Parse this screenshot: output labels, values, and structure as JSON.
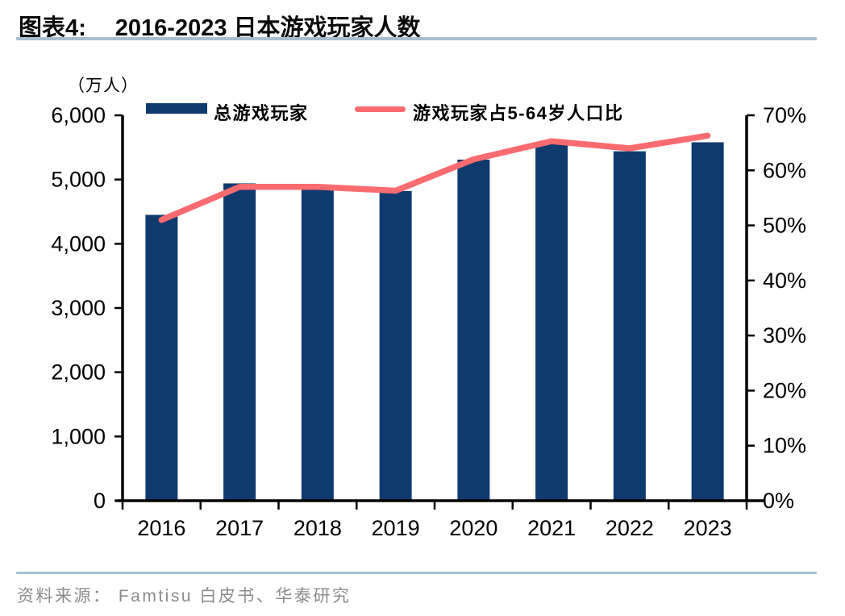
{
  "header": {
    "figure_label": "图表4:",
    "title": "2016-2023 日本游戏玩家人数"
  },
  "axis_unit": "（万人）",
  "legend": {
    "items": [
      {
        "label": "总游戏玩家",
        "type": "bar"
      },
      {
        "label": "游戏玩家占5-64岁人口比",
        "type": "line"
      }
    ]
  },
  "footer": {
    "source": "资料来源： Famtisu 白皮书、华泰研究"
  },
  "colors": {
    "bar": "#0f3a6e",
    "line": "#f96b6f",
    "axis": "#000000",
    "rule": "#a6bed2",
    "footer_text": "#8c8c8c",
    "tick_text": "#000000"
  },
  "chart_data": {
    "type": "bar",
    "subtype": "bar+line-dual-axis",
    "title": "2016-2023 日本游戏玩家人数",
    "categories": [
      "2016",
      "2017",
      "2018",
      "2019",
      "2020",
      "2021",
      "2022",
      "2023"
    ],
    "series": [
      {
        "name": "总游戏玩家",
        "type": "bar",
        "axis": "left",
        "unit": "万人",
        "values": [
          4450,
          4940,
          4920,
          4820,
          5310,
          5560,
          5440,
          5580
        ]
      },
      {
        "name": "游戏玩家占5-64岁人口比",
        "type": "line",
        "axis": "right",
        "unit": "%",
        "values": [
          51.0,
          57.0,
          57.0,
          56.3,
          62.0,
          65.3,
          64.0,
          66.3
        ]
      }
    ],
    "left_axis": {
      "label": "（万人）",
      "min": 0,
      "max": 6000,
      "step": 1000,
      "tick_labels": [
        "0",
        "1,000",
        "2,000",
        "3,000",
        "4,000",
        "5,000",
        "6,000"
      ]
    },
    "right_axis": {
      "min": 0,
      "max": 70,
      "step": 10,
      "tick_labels": [
        "0%",
        "10%",
        "20%",
        "30%",
        "40%",
        "50%",
        "60%",
        "70%"
      ]
    },
    "grid": false,
    "legend_position": "top"
  }
}
